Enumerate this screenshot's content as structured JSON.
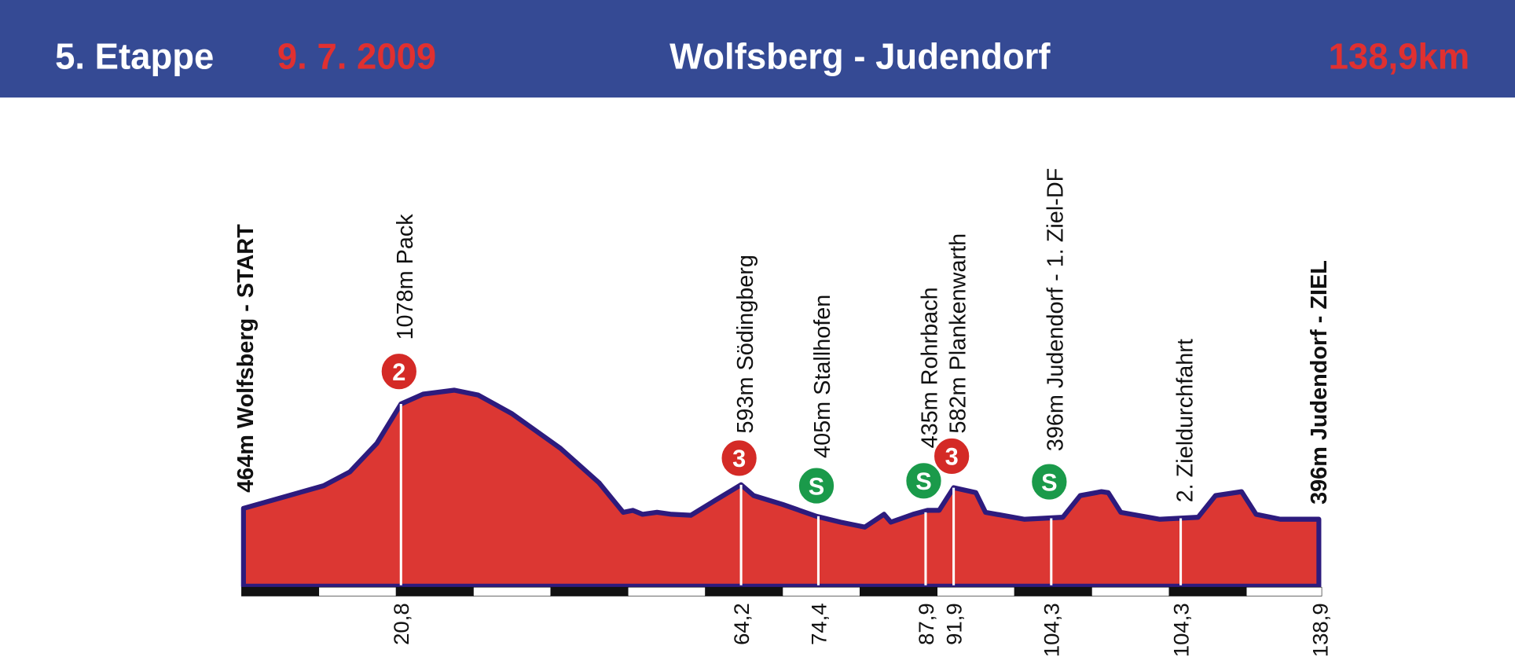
{
  "header": {
    "stage": "5. Etappe",
    "date": "9. 7. 2009",
    "route": "Wolfsberg - Judendorf",
    "distance": "138,9km"
  },
  "points": [
    {
      "label": "464m Wolfsberg - START"
    },
    {
      "label": "1078m Pack",
      "km": "20,8",
      "badge": "2"
    },
    {
      "label": "593m Södingberg",
      "km": "64,2",
      "badge": "3"
    },
    {
      "label": "405m Stallhofen",
      "km": "74,4",
      "badge": "S"
    },
    {
      "label": "435m Rohrbach",
      "km": "87,9",
      "badge": "S"
    },
    {
      "label": "582m Plankenwarth",
      "km": "91,9",
      "badge": "3"
    },
    {
      "label": "396m Judendorf - 1. Ziel-DF",
      "km": "104,3",
      "badge": "S"
    },
    {
      "label": "2. Zieldurchfahrt",
      "km": "104,3"
    },
    {
      "label": "396m Judendorf - ZIEL",
      "km": "138,9"
    }
  ]
}
